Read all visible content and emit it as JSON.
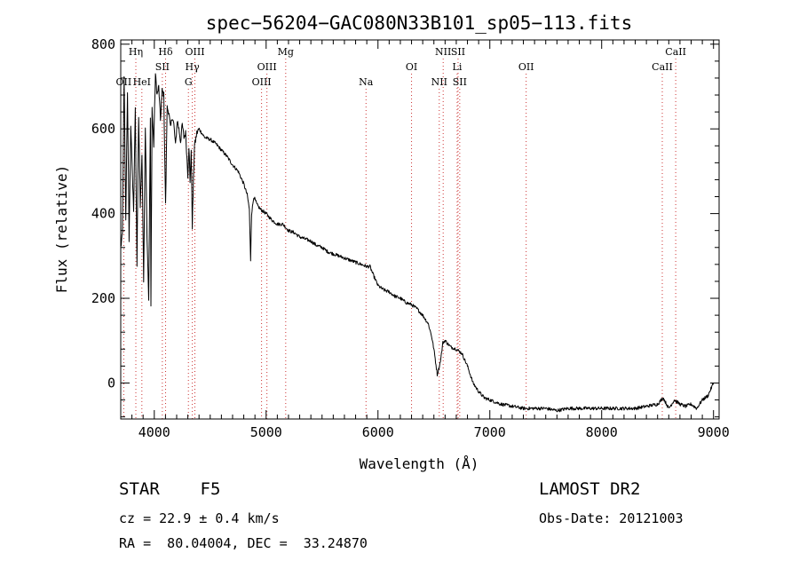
{
  "chart_data": {
    "type": "line",
    "title": "spec−56204−GAC080N33B101_sp05−113.fits",
    "xlabel": "Wavelength (Å)",
    "ylabel": "Flux (relative)",
    "xlim": [
      3700,
      9050
    ],
    "ylim": [
      -85,
      810
    ],
    "xticks": [
      4000,
      5000,
      6000,
      7000,
      8000,
      9000
    ],
    "yticks": [
      0,
      200,
      400,
      600,
      800
    ],
    "grid": false,
    "line_color": "#000000",
    "marker_color": "#cc3333",
    "series": [
      {
        "x": [
          3700,
          3715,
          3730,
          3745,
          3760,
          3775,
          3790,
          3800,
          3815,
          3830,
          3845,
          3860,
          3875,
          3890,
          3905,
          3920,
          3935,
          3950,
          3965,
          3970,
          3980,
          3995,
          4010,
          4025,
          4040,
          4055,
          4070,
          4085,
          4101,
          4115,
          4130,
          4145,
          4160,
          4175,
          4190,
          4205,
          4220,
          4235,
          4250,
          4265,
          4280,
          4300,
          4310,
          4320,
          4330,
          4340,
          4350,
          4360,
          4380,
          4400,
          4450,
          4500,
          4550,
          4600,
          4650,
          4700,
          4750,
          4800,
          4830,
          4850,
          4861,
          4870,
          4890,
          4920,
          4950,
          5000,
          5050,
          5100,
          5150,
          5200,
          5250,
          5300,
          5350,
          5400,
          5450,
          5500,
          5550,
          5600,
          5650,
          5700,
          5750,
          5800,
          5850,
          5900,
          5930,
          5950,
          6000,
          6050,
          6100,
          6150,
          6200,
          6250,
          6300,
          6350,
          6400,
          6450,
          6480,
          6500,
          6530,
          6550,
          6563,
          6580,
          6600,
          6650,
          6700,
          6750,
          6800,
          6850,
          6900,
          6950,
          7000,
          7100,
          7200,
          7300,
          7400,
          7500,
          7600,
          7700,
          7800,
          7900,
          8000,
          8100,
          8200,
          8300,
          8400,
          8500,
          8550,
          8600,
          8650,
          8700,
          8750,
          8800,
          8850,
          8900,
          8950,
          9000
        ],
        "y": [
          320,
          350,
          720,
          380,
          690,
          340,
          610,
          520,
          410,
          650,
          280,
          630,
          420,
          540,
          240,
          610,
          350,
          200,
          620,
          180,
          650,
          560,
          730,
          680,
          700,
          620,
          690,
          680,
          420,
          650,
          640,
          600,
          630,
          610,
          560,
          620,
          600,
          570,
          610,
          580,
          590,
          490,
          560,
          470,
          550,
          370,
          480,
          560,
          590,
          600,
          580,
          575,
          565,
          550,
          535,
          515,
          500,
          470,
          445,
          410,
          290,
          400,
          440,
          420,
          410,
          400,
          385,
          375,
          375,
          360,
          355,
          345,
          340,
          335,
          325,
          320,
          310,
          305,
          300,
          295,
          290,
          285,
          280,
          275,
          275,
          260,
          230,
          220,
          215,
          205,
          200,
          190,
          185,
          175,
          160,
          140,
          110,
          80,
          20,
          40,
          60,
          95,
          100,
          85,
          80,
          70,
          40,
          0,
          -20,
          -35,
          -40,
          -50,
          -55,
          -60,
          -60,
          -60,
          -65,
          -60,
          -60,
          -60,
          -60,
          -60,
          -60,
          -60,
          -55,
          -50,
          -35,
          -60,
          -40,
          -50,
          -55,
          -50,
          -60,
          -40,
          -30,
          0
        ]
      }
    ],
    "line_markers": [
      {
        "label": "OII",
        "x": 3727,
        "row": 3
      },
      {
        "label": "Hη",
        "x": 3835,
        "row": 1
      },
      {
        "label": "HeI",
        "x": 3889,
        "row": 3
      },
      {
        "label": "Hδ",
        "x": 4101,
        "row": 1
      },
      {
        "label": "SII",
        "x": 4072,
        "row": 2
      },
      {
        "label": "OIII",
        "x": 4363,
        "row": 1
      },
      {
        "label": "Hγ",
        "x": 4340,
        "row": 2
      },
      {
        "label": "G",
        "x": 4305,
        "row": 3
      },
      {
        "label": "Mg",
        "x": 5175,
        "row": 1
      },
      {
        "label": "OIII",
        "x": 5007,
        "row": 2
      },
      {
        "label": "OIII",
        "x": 4959,
        "row": 3
      },
      {
        "label": "Na",
        "x": 5893,
        "row": 3
      },
      {
        "label": "NII",
        "x": 6583,
        "row": 1
      },
      {
        "label": "SII",
        "x": 6716,
        "row": 1
      },
      {
        "label": "OI",
        "x": 6300,
        "row": 2
      },
      {
        "label": "Li",
        "x": 6708,
        "row": 2
      },
      {
        "label": "NII",
        "x": 6548,
        "row": 3
      },
      {
        "label": "SII",
        "x": 6731,
        "row": 3
      },
      {
        "label": "OII",
        "x": 7325,
        "row": 2
      },
      {
        "label": "CaII",
        "x": 8662,
        "row": 1
      },
      {
        "label": "CaII",
        "x": 8542,
        "row": 2
      }
    ]
  },
  "info": {
    "object_class": "STAR    F5",
    "survey": "LAMOST DR2",
    "cz": "cz = 22.9 ± 0.4 km/s",
    "obs_date": "Obs-Date: 20121003",
    "coords": "RA =  80.04004, DEC =  33.24870"
  }
}
